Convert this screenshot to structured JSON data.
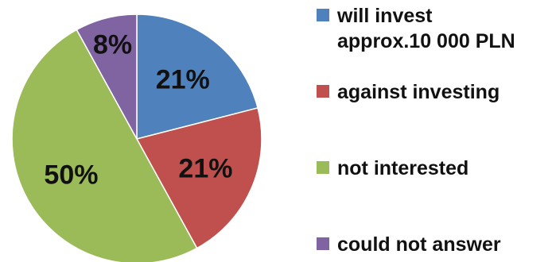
{
  "chart_data": {
    "type": "pie",
    "title": "",
    "legend_position": "right",
    "slices": [
      {
        "name": "will invest\napprox.10 000 PLN",
        "value": 21,
        "label": "21%",
        "color": "#4f81bd"
      },
      {
        "name": "against investing",
        "value": 21,
        "label": "21%",
        "color": "#c0504d"
      },
      {
        "name": "not interested",
        "value": 50,
        "label": "50%",
        "color": "#9bbb59"
      },
      {
        "name": "could not answer",
        "value": 8,
        "label": "8%",
        "color": "#8064a2"
      }
    ]
  }
}
